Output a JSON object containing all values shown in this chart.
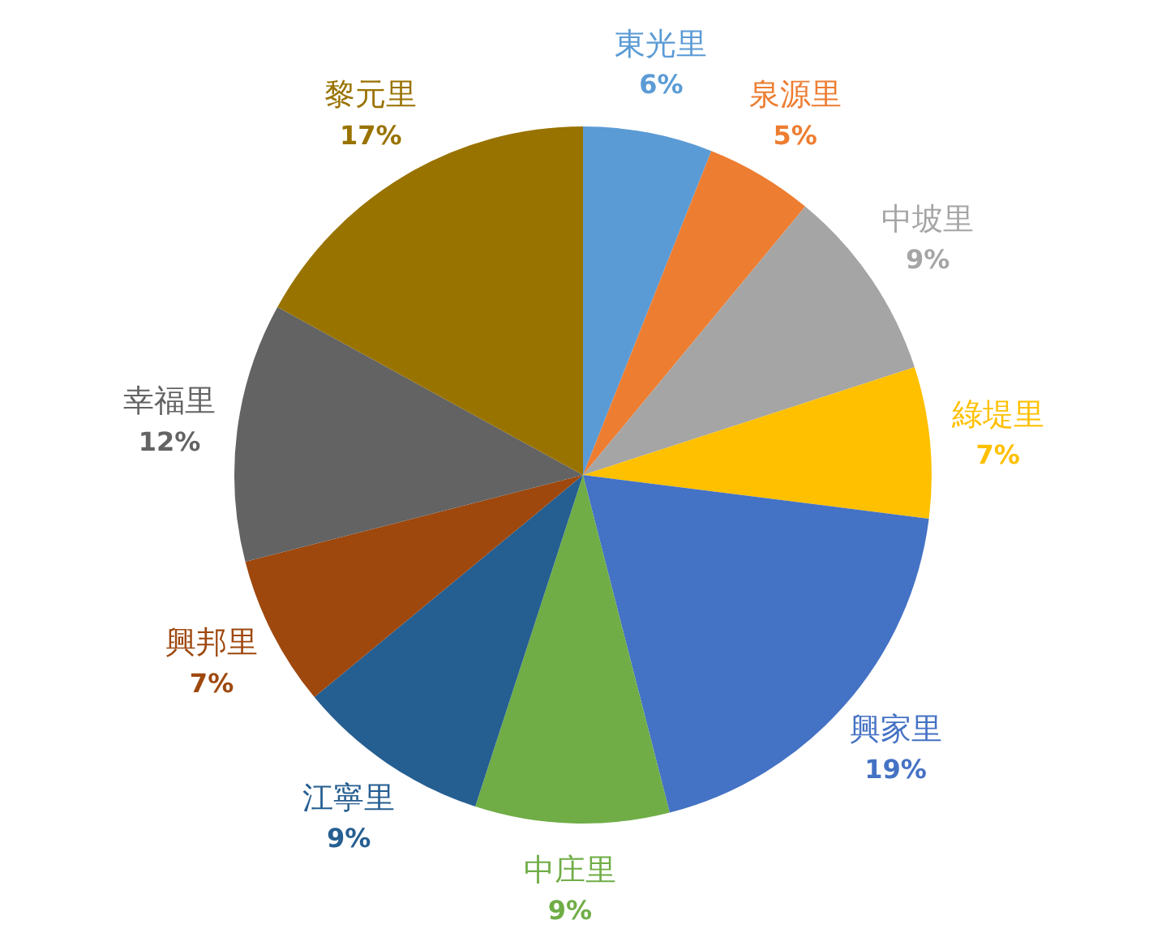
{
  "chart_data": {
    "type": "pie",
    "categories": [
      "東光里",
      "泉源里",
      "中坡里",
      "綠堤里",
      "興家里",
      "中庄里",
      "江寧里",
      "興邦里",
      "幸福里",
      "黎元里"
    ],
    "values": [
      6,
      5,
      9,
      7,
      19,
      9,
      9,
      7,
      12,
      17
    ],
    "value_labels": [
      "6%",
      "5%",
      "9%",
      "7%",
      "19%",
      "9%",
      "9%",
      "7%",
      "12%",
      "17%"
    ],
    "colors": [
      "#5b9bd5",
      "#ed7d31",
      "#a5a5a5",
      "#ffc000",
      "#4472c4",
      "#70ad47",
      "#255e91",
      "#9e480e",
      "#636363",
      "#997300"
    ],
    "legend": false
  }
}
